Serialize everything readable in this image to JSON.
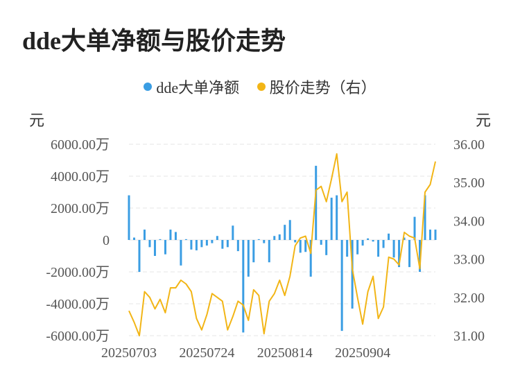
{
  "title": "dde大单净额与股价走势",
  "legend": {
    "bar_label": "dde大单净额",
    "line_label": "股价走势（右）"
  },
  "units": {
    "left": "元",
    "right": "元"
  },
  "colors": {
    "bar": "#3a9de3",
    "line": "#f2b516",
    "grid": "#e6e6e6"
  },
  "chart_data": {
    "type": "bar+line",
    "title": "dde大单净额与股价走势",
    "x_tick_labels": [
      "20250703",
      "20250724",
      "20250814",
      "20250904"
    ],
    "y_left": {
      "ylim": [
        -6000,
        6000
      ],
      "ticks": [
        6000,
        4000,
        2000,
        0,
        -2000,
        -4000,
        -6000
      ],
      "tick_labels": [
        "6000.00万",
        "4000.00万",
        "2000.00万",
        "0",
        "-2000.00万",
        "-4000.00万",
        "-6000.00万"
      ]
    },
    "y_right": {
      "ylim": [
        31,
        36
      ],
      "ticks": [
        36,
        35,
        34,
        33,
        32,
        31
      ],
      "tick_labels": [
        "36.00",
        "35.00",
        "34.00",
        "33.00",
        "32.00",
        "31.00"
      ]
    },
    "series": [
      {
        "name": "dde大单净额",
        "kind": "bar",
        "axis": "left",
        "unit": "万",
        "values": [
          2800,
          150,
          -2000,
          650,
          -450,
          -1000,
          50,
          -900,
          650,
          500,
          -1600,
          50,
          -600,
          -650,
          -450,
          -350,
          -200,
          250,
          -550,
          -450,
          900,
          -700,
          -5800,
          -2300,
          -1400,
          50,
          -200,
          -1400,
          250,
          350,
          950,
          1250,
          -150,
          -800,
          -750,
          -2300,
          4650,
          -300,
          -950,
          2650,
          2800,
          -5700,
          -1050,
          -4300,
          -900,
          -350,
          100,
          -100,
          -1050,
          -500,
          400,
          -1100,
          -1700,
          150,
          -1700,
          1450,
          -2000,
          2800,
          650,
          650
        ]
      },
      {
        "name": "股价走势（右）",
        "kind": "line",
        "axis": "right",
        "unit": "元",
        "values": [
          31.65,
          31.35,
          31.0,
          32.15,
          32.0,
          31.7,
          31.95,
          31.6,
          32.25,
          32.25,
          32.45,
          32.35,
          32.15,
          31.45,
          31.15,
          31.55,
          32.1,
          32.0,
          31.9,
          31.15,
          31.5,
          31.9,
          31.8,
          31.4,
          32.2,
          32.05,
          31.05,
          31.9,
          32.1,
          32.45,
          32.05,
          32.55,
          33.35,
          33.55,
          33.6,
          33.15,
          34.8,
          34.9,
          34.5,
          35.1,
          35.75,
          34.5,
          34.75,
          32.75,
          32.0,
          31.3,
          32.15,
          32.55,
          31.45,
          31.75,
          33.05,
          33.0,
          32.85,
          33.7,
          33.6,
          33.55,
          32.75,
          34.75,
          34.95,
          35.55
        ]
      }
    ],
    "grid": true,
    "legend_position": "top-center"
  }
}
